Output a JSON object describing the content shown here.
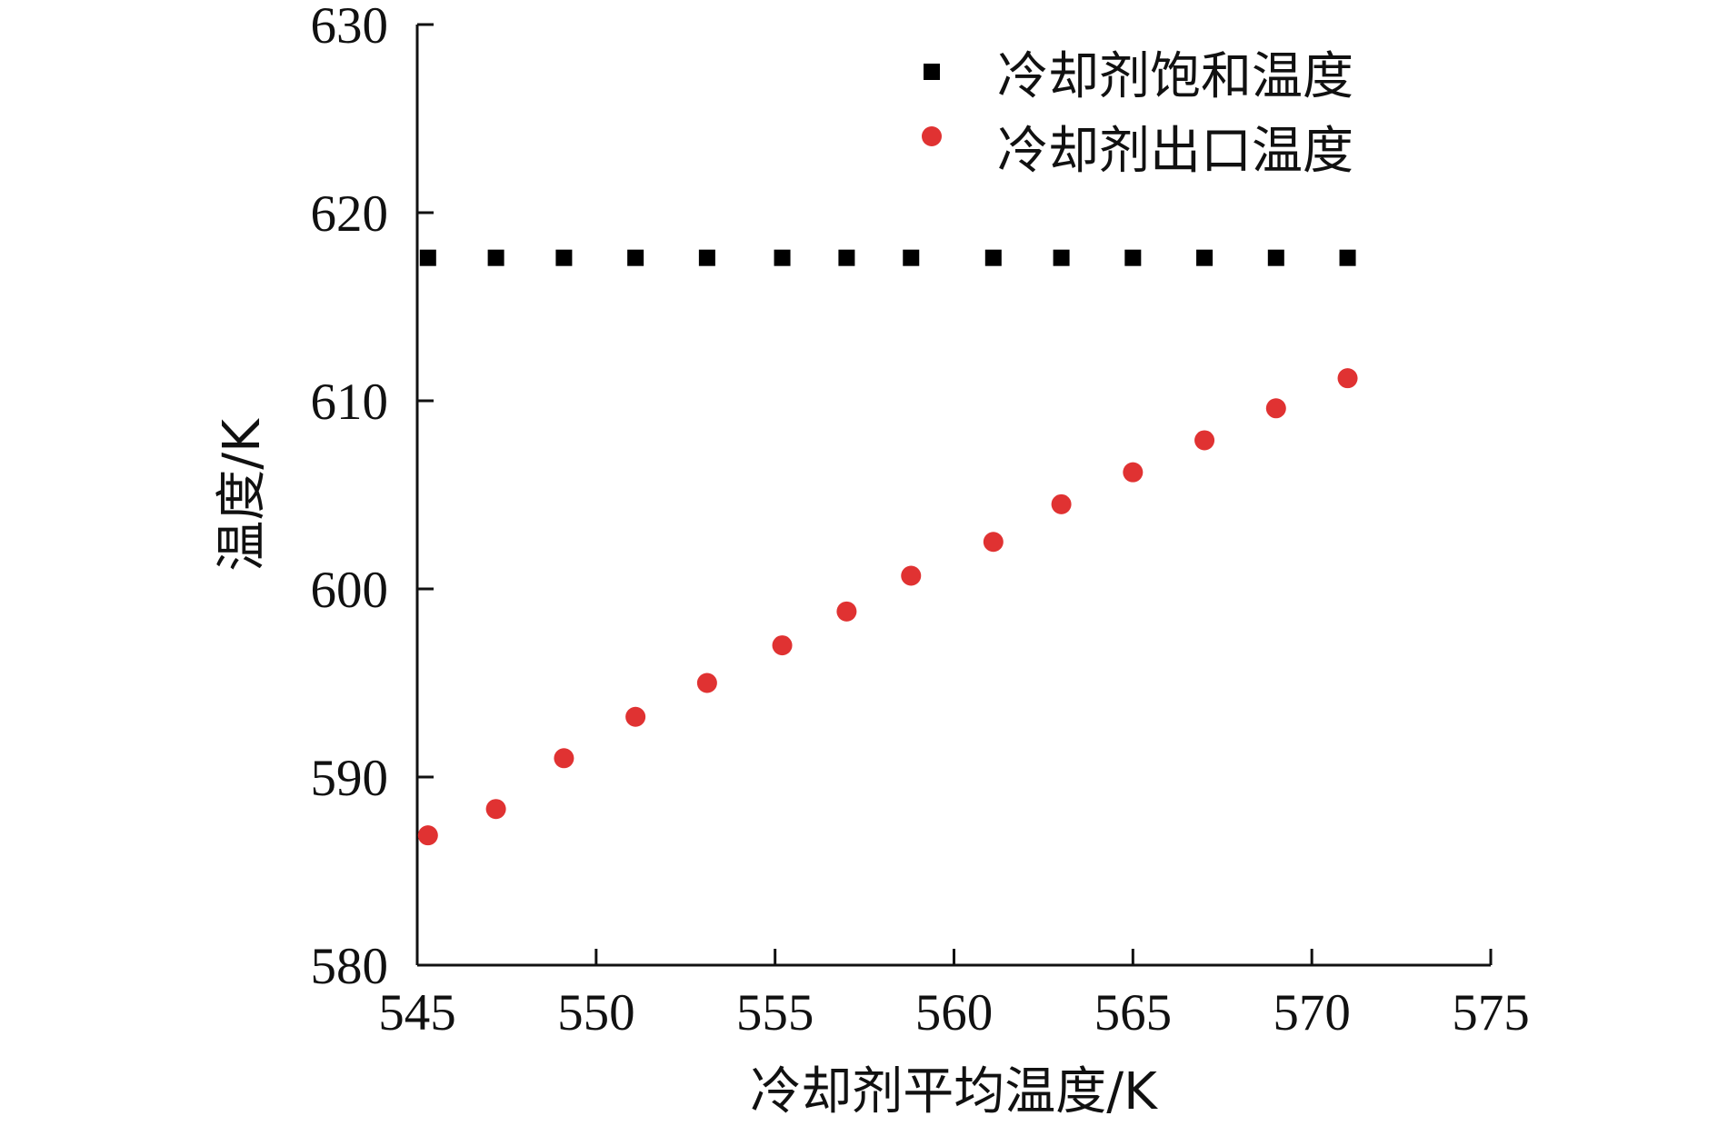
{
  "chart_data": {
    "type": "scatter",
    "title": "",
    "xlabel": "冷却剂平均温度/K",
    "ylabel": "温度/K",
    "xlim": [
      545,
      575
    ],
    "ylim": [
      580,
      630
    ],
    "xticks": [
      "545",
      "550",
      "555",
      "560",
      "565",
      "570",
      "575"
    ],
    "yticks": [
      "580",
      "590",
      "600",
      "610",
      "620",
      "630"
    ],
    "grid": false,
    "legend_position": "top-right",
    "series": [
      {
        "name": "冷却剂饱和温度",
        "marker": "square",
        "color": "#000000",
        "x": [
          545.3,
          547.2,
          549.1,
          551.1,
          553.1,
          555.2,
          557.0,
          558.8,
          561.1,
          563.0,
          565.0,
          567.0,
          569.0,
          571.0
        ],
        "y": [
          617.6,
          617.6,
          617.6,
          617.6,
          617.6,
          617.6,
          617.6,
          617.6,
          617.6,
          617.6,
          617.6,
          617.6,
          617.6,
          617.6
        ]
      },
      {
        "name": "冷却剂出口温度",
        "marker": "circle",
        "color": "#e03232",
        "x": [
          545.3,
          547.2,
          549.1,
          551.1,
          553.1,
          555.2,
          557.0,
          558.8,
          561.1,
          563.0,
          565.0,
          567.0,
          569.0,
          571.0
        ],
        "y": [
          586.9,
          588.3,
          591.0,
          593.2,
          595.0,
          597.0,
          598.8,
          600.7,
          602.5,
          604.5,
          606.2,
          607.9,
          609.6,
          611.2
        ]
      }
    ]
  }
}
